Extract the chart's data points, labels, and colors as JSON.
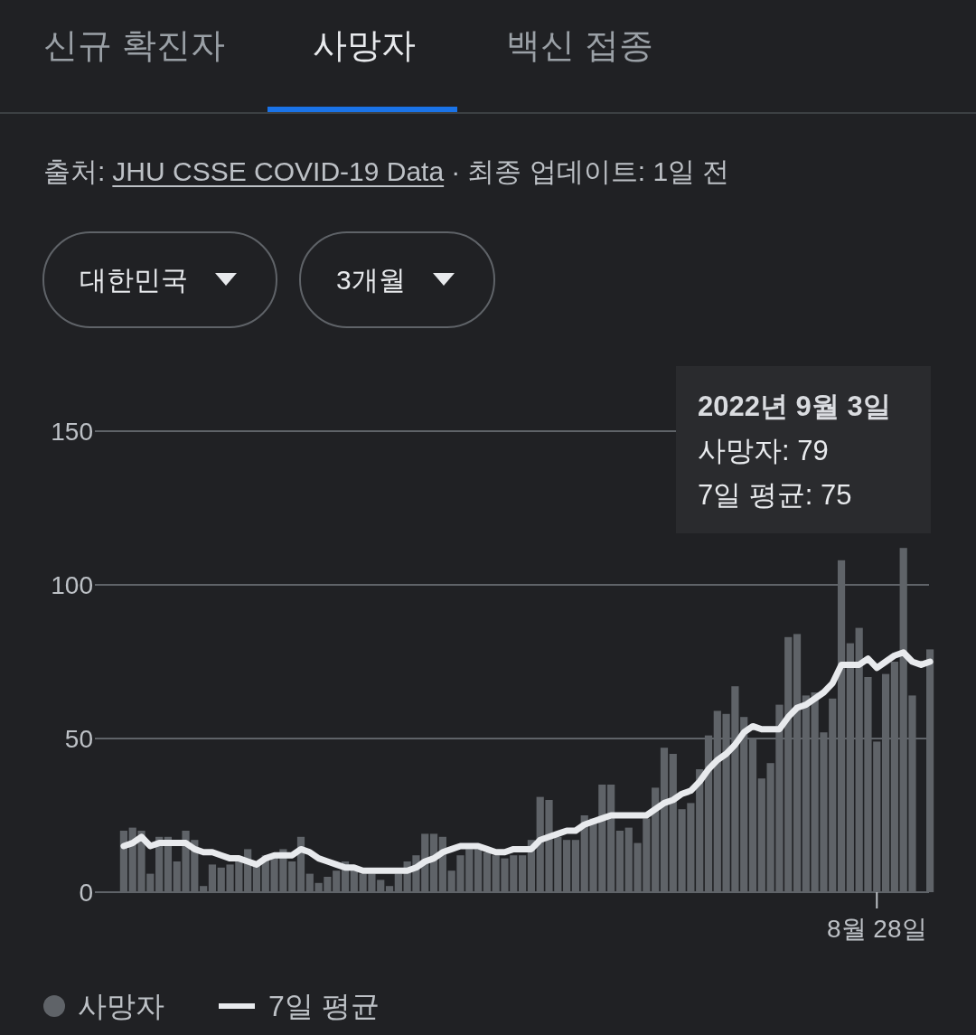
{
  "chart_data": {
    "type": "bar",
    "annotations": [
      "신규 확진자",
      "사망자",
      "백신 접종",
      "출처:",
      "JHU CSSE COVID-19 Data",
      "· 최종 업데이트: 1일 전",
      "대한민국",
      "3개월",
      "2022년 9월 3일",
      "사망자: 79",
      "7일 평균: 75"
    ],
    "categories": [
      null,
      null,
      null,
      null,
      null,
      null,
      null,
      null,
      null,
      null,
      null,
      null,
      null,
      null,
      null,
      null,
      null,
      null,
      null,
      null,
      null,
      null,
      null,
      null,
      null,
      null,
      null,
      null,
      null,
      null,
      null,
      null,
      null,
      null,
      null,
      null,
      null,
      null,
      null,
      null,
      null,
      null,
      null,
      null,
      null,
      null,
      null,
      null,
      null,
      null,
      null,
      null,
      null,
      null,
      null,
      null,
      null,
      null,
      null,
      null,
      null,
      null,
      null,
      null,
      null,
      null,
      null,
      null,
      null,
      null,
      null,
      null,
      null,
      null,
      null,
      null,
      null,
      null,
      null,
      null,
      null,
      null,
      null,
      null,
      null,
      "8월 28일",
      null,
      null,
      null,
      null,
      null,
      null
    ],
    "series": [
      {
        "name": "사망자",
        "color": "#5f6368",
        "values": [
          20,
          21,
          20,
          6,
          18,
          18,
          10,
          20,
          17,
          2,
          9,
          8,
          9,
          10,
          14,
          9,
          12,
          12,
          14,
          10,
          18,
          6,
          3,
          5,
          7,
          10,
          8,
          6,
          6,
          4,
          2,
          6,
          10,
          12,
          19,
          19,
          18,
          7,
          12,
          14,
          14,
          13,
          12,
          11,
          12,
          12,
          17,
          31,
          30,
          18,
          17,
          17,
          25,
          24,
          35,
          35,
          20,
          21,
          16,
          24,
          34,
          47,
          45,
          27,
          29,
          40,
          51,
          59,
          58,
          67,
          57,
          50,
          37,
          42,
          61,
          83,
          84,
          64,
          65,
          52,
          63,
          108,
          81,
          86,
          70,
          49,
          71,
          75,
          112,
          64,
          null,
          79
        ]
      },
      {
        "name": "7일 평균",
        "type": "line",
        "color": "#e8eaed",
        "values": [
          15,
          16,
          18,
          15,
          16,
          16,
          16,
          16,
          14,
          13,
          13,
          12,
          11,
          11,
          10,
          9,
          11,
          12,
          12,
          12,
          14,
          13,
          11,
          10,
          9,
          8,
          8,
          7,
          7,
          7,
          7,
          7,
          7,
          8,
          10,
          11,
          13,
          14,
          15,
          15,
          15,
          14,
          13,
          13,
          14,
          14,
          14,
          17,
          18,
          19,
          20,
          20,
          22,
          23,
          24,
          25,
          25,
          25,
          25,
          25,
          27,
          29,
          30,
          32,
          33,
          36,
          40,
          43,
          45,
          48,
          52,
          54,
          53,
          53,
          53,
          57,
          60,
          61,
          63,
          65,
          68,
          74,
          74,
          74,
          76,
          73,
          75,
          77,
          78,
          75,
          74,
          75
        ]
      }
    ],
    "ylim": [
      0,
      150
    ],
    "yticks": [
      0,
      50,
      100,
      150
    ],
    "grid": "y",
    "legend": "bottom left"
  }
}
